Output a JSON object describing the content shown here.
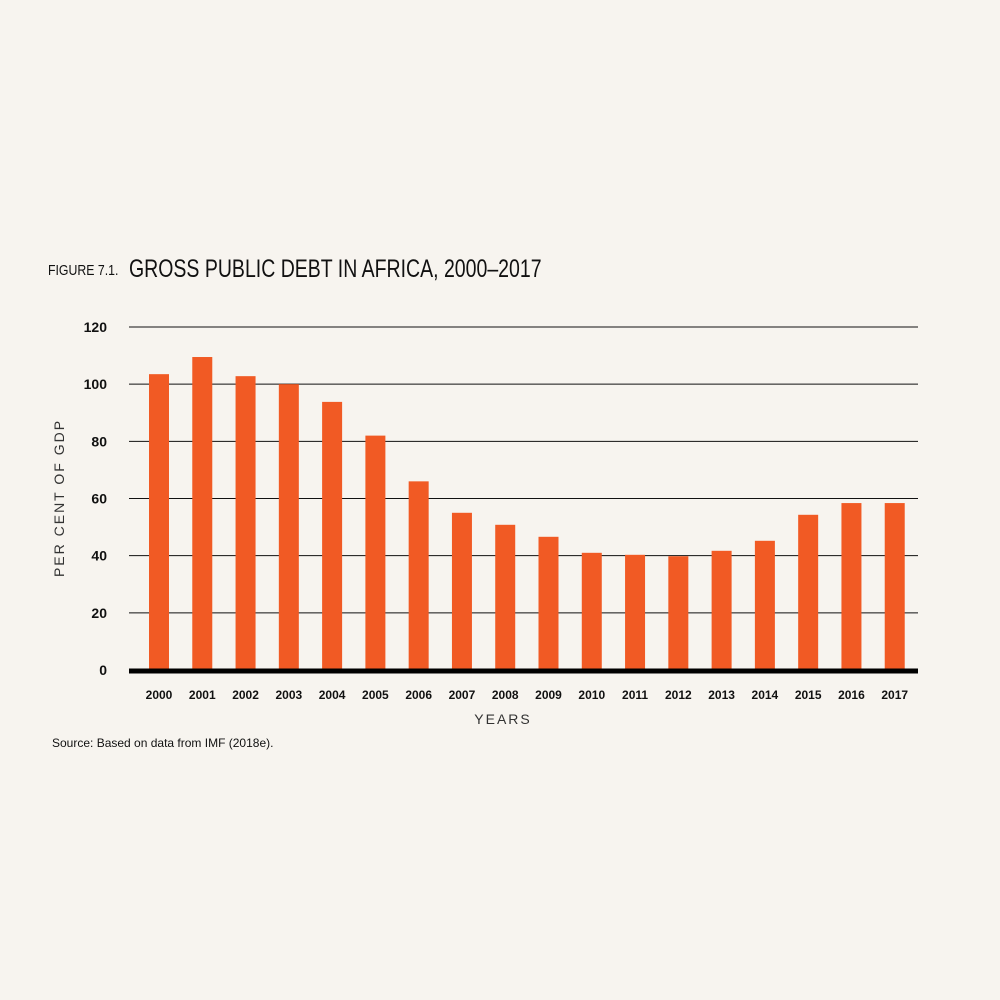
{
  "figure": {
    "label": "FIGURE 7.1.",
    "title": "GROSS PUBLIC DEBT IN AFRICA, 2000–2017",
    "source": "Source: Based on data from IMF (2018e)."
  },
  "colors": {
    "bar": "#f15a24",
    "background": "#f7f4ef",
    "grid": "#111111"
  },
  "chart_data": {
    "type": "bar",
    "categories": [
      "2000",
      "2001",
      "2002",
      "2003",
      "2004",
      "2005",
      "2006",
      "2007",
      "2008",
      "2009",
      "2010",
      "2011",
      "2012",
      "2013",
      "2014",
      "2015",
      "2016",
      "2017"
    ],
    "values": [
      103.5,
      109.5,
      102.8,
      100,
      93.8,
      82,
      66,
      55,
      50.8,
      46.6,
      41,
      40.3,
      39.8,
      41.7,
      45.2,
      54.3,
      58.4,
      58.4
    ],
    "ylabel": "PER CENT OF GDP",
    "xlabel": "YEARS",
    "ylim": [
      0,
      120
    ],
    "yticks": [
      0,
      20,
      40,
      60,
      80,
      100,
      120
    ],
    "grid": true
  }
}
